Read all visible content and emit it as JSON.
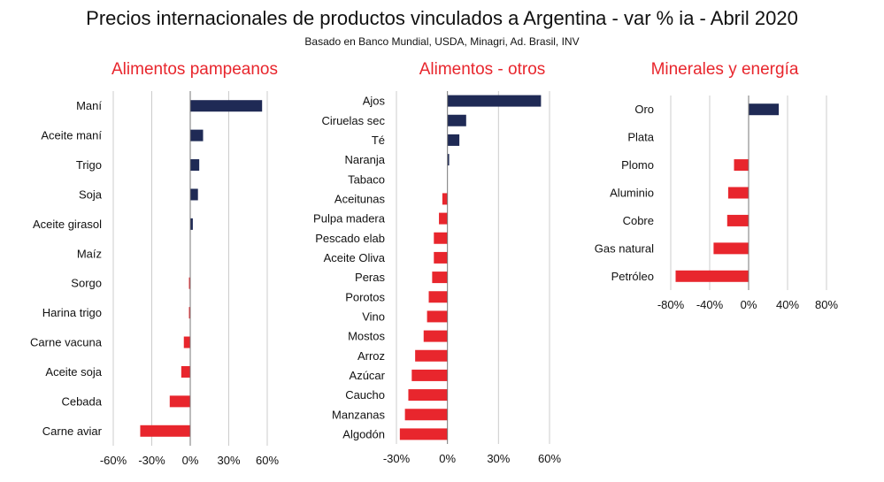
{
  "title": "Precios internacionales de productos vinculados a Argentina - var % ia - Abril 2020",
  "subtitle": "Basado en Banco Mundial, USDA, Minagri, Ad. Brasil, INV",
  "colors": {
    "positive": "#1f2a55",
    "negative": "#e8262d",
    "panel_title": "#e8262d",
    "grid": "#cccccc",
    "axis": "#777777"
  },
  "chart_data": [
    {
      "type": "bar",
      "orientation": "horizontal",
      "title": "Alimentos  pampeanos",
      "categories": [
        "Maní",
        "Aceite maní",
        "Trigo",
        "Soja",
        "Aceite girasol",
        "Maíz",
        "Sorgo",
        "Harina trigo",
        "Carne vacuna",
        "Aceite soja",
        "Cebada",
        "Carne aviar"
      ],
      "values": [
        56,
        10,
        7,
        6,
        2,
        0,
        -1,
        -1,
        -5,
        -7,
        -16,
        -39
      ],
      "xlim": [
        -60,
        60
      ],
      "ticks": [
        -60,
        -30,
        0,
        30,
        60
      ],
      "tick_labels": [
        "-60%",
        "-30%",
        "0%",
        "30%",
        "60%"
      ],
      "grid": true
    },
    {
      "type": "bar",
      "orientation": "horizontal",
      "title": "Alimentos  - otros",
      "categories": [
        "Ajos",
        "Ciruelas sec",
        "Té",
        "Naranja",
        "Tabaco",
        "Aceitunas",
        "Pulpa madera",
        "Pescado elab",
        "Aceite Oliva",
        "Peras",
        "Porotos",
        "Vino",
        "Mostos",
        "Arroz",
        "Azúcar",
        "Caucho",
        "Manzanas",
        "Algodón"
      ],
      "values": [
        55,
        11,
        7,
        1,
        0,
        -3,
        -5,
        -8,
        -8,
        -9,
        -11,
        -12,
        -14,
        -19,
        -21,
        -23,
        -25,
        -28
      ],
      "xlim": [
        -30,
        60
      ],
      "ticks": [
        -30,
        0,
        30,
        60
      ],
      "tick_labels": [
        "-30%",
        "0%",
        "30%",
        "60%"
      ],
      "grid": true
    },
    {
      "type": "bar",
      "orientation": "horizontal",
      "title": "Minerales y energía",
      "categories": [
        "Oro",
        "Plata",
        "Plomo",
        "Aluminio",
        "Cobre",
        "Gas natural",
        "Petróleo"
      ],
      "values": [
        31,
        0,
        -15,
        -21,
        -22,
        -36,
        -75
      ],
      "xlim": [
        -80,
        80
      ],
      "ticks": [
        -80,
        -40,
        0,
        40,
        80
      ],
      "tick_labels": [
        "-80%",
        "-40%",
        "0%",
        "40%",
        "80%"
      ],
      "grid": true
    }
  ]
}
